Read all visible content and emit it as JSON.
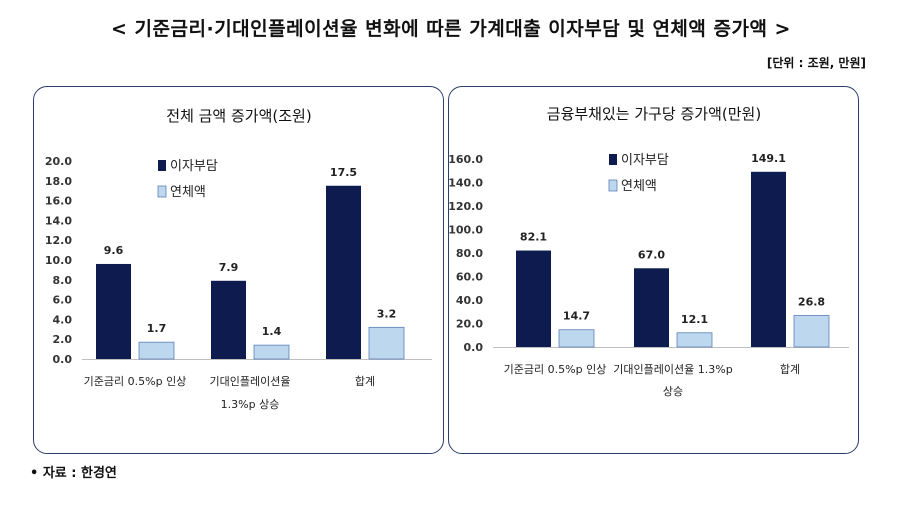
{
  "title": "< 기준금리·기대인플레이션율 변화에 따른 가계대출 이자부담 및 연체액 증가액 >",
  "unit_note": "[단위 : 조원, 만원]",
  "source": "• 자료 : 한경연",
  "colors": {
    "interest": "#0d1b4f",
    "delinquency": "#bdd7ee",
    "panel_border": "#2b3f6b"
  },
  "chart_data": [
    {
      "type": "bar",
      "title": "전체 금액 증가액(조원)",
      "categories": [
        [
          "기준금리 0.5%p 인상"
        ],
        [
          "기대인플레이션율",
          "1.3%p 상승"
        ],
        [
          "합계"
        ]
      ],
      "series": [
        {
          "name": "이자부담",
          "values": [
            9.6,
            7.9,
            17.5
          ],
          "labels": [
            "9.6",
            "7.9",
            "17.5"
          ]
        },
        {
          "name": "연체액",
          "values": [
            1.7,
            1.4,
            3.2
          ],
          "labels": [
            "1.7",
            "1.4",
            "3.2"
          ]
        }
      ],
      "ylim": [
        0,
        20
      ],
      "yticks": [
        "0.0",
        "2.0",
        "4.0",
        "6.0",
        "8.0",
        "10.0",
        "12.0",
        "14.0",
        "16.0",
        "18.0",
        "20.0"
      ],
      "legend": "top-left",
      "grid": false
    },
    {
      "type": "bar",
      "title": "금융부채있는 가구당 증가액(만원)",
      "categories": [
        [
          "기준금리 0.5%p 인상"
        ],
        [
          "기대인플레이션율 1.3%p",
          "상승"
        ],
        [
          "합계"
        ]
      ],
      "series": [
        {
          "name": "이자부담",
          "values": [
            82.1,
            67.0,
            149.1
          ],
          "labels": [
            "82.1",
            "67.0",
            "149.1"
          ]
        },
        {
          "name": "연체액",
          "values": [
            14.7,
            12.1,
            26.8
          ],
          "labels": [
            "14.7",
            "12.1",
            "26.8"
          ]
        }
      ],
      "ylim": [
        0,
        160
      ],
      "yticks": [
        "0.0",
        "20.0",
        "40.0",
        "60.0",
        "80.0",
        "100.0",
        "120.0",
        "140.0",
        "160.0"
      ],
      "legend": "top-left",
      "grid": false
    }
  ]
}
